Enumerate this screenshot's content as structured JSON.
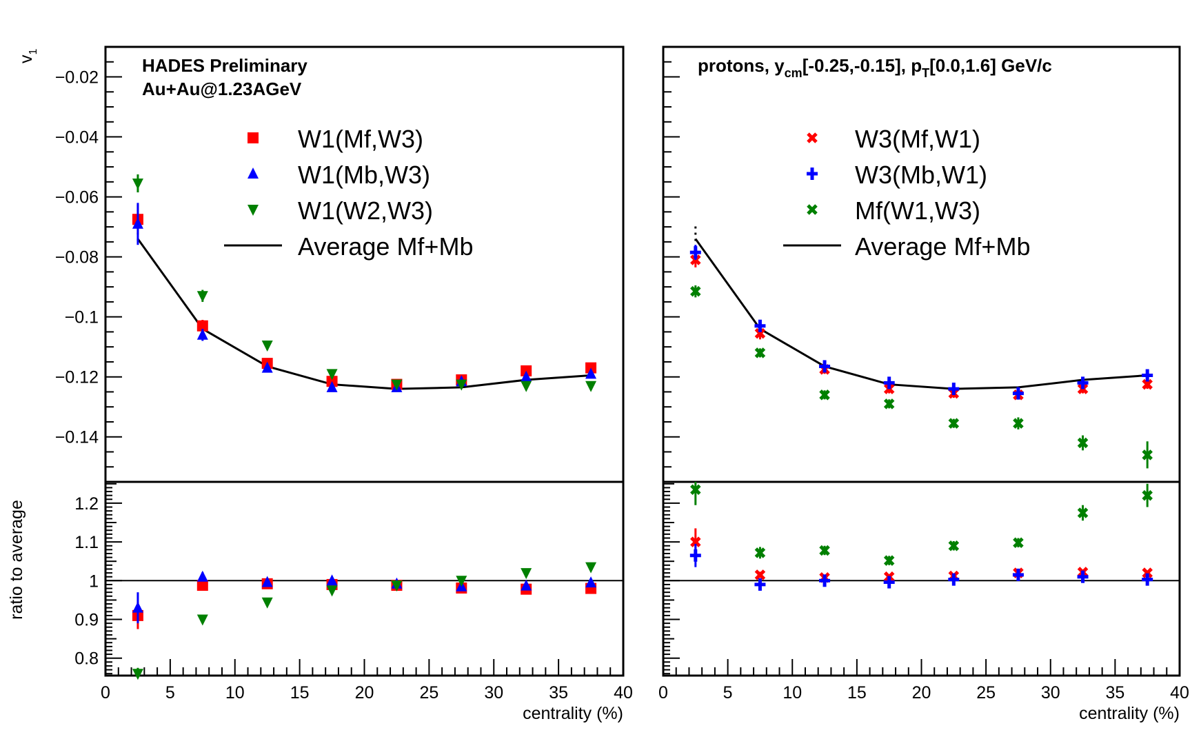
{
  "chart_data": [
    {
      "type": "scatter",
      "panel": "left",
      "header_lines": [
        "HADES Preliminary",
        "Au+Au@1.23AGeV"
      ],
      "ylabel_top": "v",
      "ylabel_top_sub": "1",
      "ylabel_bottom": "ratio to average",
      "xlabel": "centrality (%)",
      "xlim": [
        0,
        40
      ],
      "ylim_top": [
        -0.155,
        -0.01
      ],
      "ylim_bottom": [
        0.755,
        1.255
      ],
      "x_ticks": [
        "0",
        "5",
        "10",
        "15",
        "20",
        "25",
        "30",
        "35",
        "40"
      ],
      "y_ticks_top": [
        "−0.02",
        "−0.04",
        "−0.06",
        "−0.08",
        "−0.1",
        "−0.12",
        "−0.14"
      ],
      "y_ticks_bottom": [
        "0.8",
        "0.9",
        "1",
        "1.1",
        "1.2"
      ],
      "x": [
        2.5,
        7.5,
        12.5,
        17.5,
        22.5,
        27.5,
        32.5,
        37.5
      ],
      "average": {
        "name": "Average Mf+Mb",
        "values": [
          -0.074,
          -0.104,
          -0.1165,
          -0.1225,
          -0.124,
          -0.1235,
          -0.121,
          -0.1195
        ]
      },
      "series": [
        {
          "name": "W1(Mf,W3)",
          "marker": "square",
          "color": "#ff0000",
          "values": [
            -0.0675,
            -0.103,
            -0.1155,
            -0.1215,
            -0.1225,
            -0.121,
            -0.118,
            -0.117
          ],
          "errors": [
            0.005,
            0.002,
            0.0015,
            0.0015,
            0.0012,
            0.0012,
            0.0012,
            0.0012
          ],
          "ratio": [
            0.91,
            0.988,
            0.992,
            0.99,
            0.988,
            0.981,
            0.978,
            0.98
          ],
          "ratio_errors": [
            0.035,
            0.012,
            0.008,
            0.007,
            0.006,
            0.006,
            0.006,
            0.006
          ]
        },
        {
          "name": "W1(Mb,W3)",
          "marker": "triangle-up",
          "color": "#0000ff",
          "values": [
            -0.069,
            -0.106,
            -0.117,
            -0.1235,
            -0.1235,
            -0.1215,
            -0.12,
            -0.119
          ],
          "errors": [
            0.007,
            0.002,
            0.0015,
            0.0015,
            0.0012,
            0.0012,
            0.0012,
            0.0012
          ],
          "ratio": [
            0.93,
            1.01,
            0.996,
            1.0,
            0.992,
            0.985,
            0.987,
            0.995
          ],
          "ratio_errors": [
            0.04,
            0.012,
            0.008,
            0.007,
            0.006,
            0.006,
            0.006,
            0.006
          ]
        },
        {
          "name": "W1(W2,W3)",
          "marker": "triangle-down",
          "color": "#008000",
          "values": [
            -0.0555,
            -0.093,
            -0.1095,
            -0.119,
            -0.1225,
            -0.1225,
            -0.123,
            -0.123
          ],
          "errors": [
            0.003,
            0.002,
            0.0015,
            0.0015,
            0.0012,
            0.0012,
            0.0012,
            0.0012
          ],
          "ratio": [
            0.76,
            0.9,
            0.944,
            0.975,
            0.988,
            1.0,
            1.02,
            1.035
          ],
          "ratio_errors": [
            0.015,
            0.008,
            0.006,
            0.005,
            0.005,
            0.005,
            0.005,
            0.005
          ]
        }
      ]
    },
    {
      "type": "scatter",
      "panel": "right",
      "header_parts": [
        "protons, y",
        "cm",
        "[-0.25,-0.15], p",
        "T",
        "[0.0,1.6] GeV/c"
      ],
      "xlabel": "centrality (%)",
      "xlim": [
        0,
        40
      ],
      "ylim_top": [
        -0.155,
        -0.01
      ],
      "ylim_bottom": [
        0.755,
        1.255
      ],
      "x_ticks": [
        "0",
        "5",
        "10",
        "15",
        "20",
        "25",
        "30",
        "35",
        "40"
      ],
      "x": [
        2.5,
        7.5,
        12.5,
        17.5,
        22.5,
        27.5,
        32.5,
        37.5
      ],
      "average": {
        "name": "Average Mf+Mb",
        "values": [
          -0.074,
          -0.104,
          -0.1165,
          -0.1225,
          -0.124,
          -0.1235,
          -0.121,
          -0.1195
        ]
      },
      "series": [
        {
          "name": "W3(Mf,W1)",
          "marker": "x",
          "color": "#ff0000",
          "values": [
            -0.081,
            -0.1055,
            -0.1175,
            -0.124,
            -0.1255,
            -0.126,
            -0.124,
            -0.1225
          ],
          "errors": [
            0.0025,
            0.002,
            0.0015,
            0.0015,
            0.0015,
            0.0015,
            0.0015,
            0.0015
          ],
          "ratio": [
            1.1,
            1.015,
            1.008,
            1.01,
            1.012,
            1.02,
            1.022,
            1.02
          ],
          "ratio_errors": [
            0.035,
            0.008,
            0.006,
            0.006,
            0.006,
            0.006,
            0.006,
            0.006
          ]
        },
        {
          "name": "W3(Mb,W1)",
          "marker": "plus",
          "color": "#0000ff",
          "values": [
            -0.0785,
            -0.103,
            -0.1165,
            -0.122,
            -0.124,
            -0.1255,
            -0.122,
            -0.1195
          ],
          "errors": [
            0.0025,
            0.002,
            0.0015,
            0.0015,
            0.0015,
            0.0015,
            0.0015,
            0.0015
          ],
          "ratio": [
            1.065,
            0.99,
            1.0,
            0.996,
            1.003,
            1.015,
            1.01,
            1.003
          ],
          "ratio_errors": [
            0.03,
            0.008,
            0.006,
            0.006,
            0.006,
            0.006,
            0.006,
            0.006
          ]
        },
        {
          "name": "Mf(W1,W3)",
          "marker": "x",
          "color": "#008000",
          "values": [
            -0.0915,
            -0.112,
            -0.126,
            -0.129,
            -0.1355,
            -0.1355,
            -0.142,
            -0.146
          ],
          "errors": [
            0.002,
            0.0015,
            0.0015,
            0.0015,
            0.0015,
            0.002,
            0.0025,
            0.0045
          ],
          "ratio": [
            1.235,
            1.072,
            1.078,
            1.052,
            1.09,
            1.098,
            1.175,
            1.22
          ],
          "ratio_errors": [
            0.04,
            0.015,
            0.012,
            0.012,
            0.012,
            0.012,
            0.02,
            0.03
          ]
        }
      ]
    }
  ]
}
